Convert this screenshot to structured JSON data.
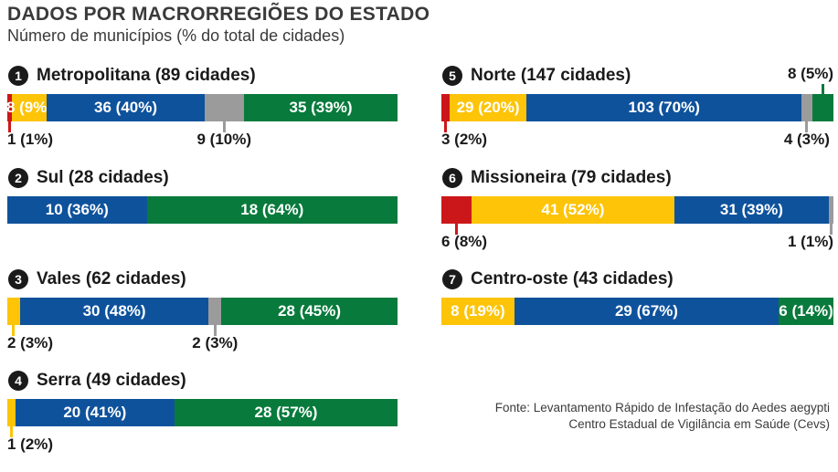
{
  "header": {
    "title": "DADOS POR MACRORREGIÕES DO ESTADO",
    "subtitle": "Número de municípios (% do total de cidades)"
  },
  "footer": {
    "source_line1": "Fonte: Levantamento Rápido de Infestação do Aedes aegypti",
    "source_line2": "Centro Estadual de Vigilância em Saúde (Cevs)"
  },
  "palette": {
    "red": "#cc171a",
    "yellow": "#fdc408",
    "blue": "#0e529c",
    "gray": "#9b9b9b",
    "green": "#087a3c",
    "badge_black": "#1a1a1a",
    "inside_label_text": "#ffffff",
    "callout_label_text": "#1a1a1a"
  },
  "chart_data": {
    "type": "bar",
    "orientation": "horizontal-stacked",
    "value_format": "count (percent of region total)",
    "title": "DADOS POR MACRORREGIÕES DO ESTADO",
    "subtitle": "Número de municípios (% do total de cidades)",
    "legend_position": "none",
    "charts": [
      {
        "number": "1",
        "region": "Metropolitana",
        "total_cities": 89,
        "title": "Metropolitana (89 cidades)",
        "segments": [
          {
            "color": "red",
            "value": 1,
            "pct": 1,
            "label": "1 (1%)",
            "label_position": "below"
          },
          {
            "color": "yellow",
            "value": 8,
            "pct": 9,
            "label": "8 (9%)",
            "label_position": "inside"
          },
          {
            "color": "blue",
            "value": 36,
            "pct": 40,
            "label": "36 (40%)",
            "label_position": "inside"
          },
          {
            "color": "gray",
            "value": 9,
            "pct": 10,
            "label": "9 (10%)",
            "label_position": "below"
          },
          {
            "color": "green",
            "value": 35,
            "pct": 39,
            "label": "35 (39%)",
            "label_position": "inside"
          }
        ]
      },
      {
        "number": "2",
        "region": "Sul",
        "total_cities": 28,
        "title": "Sul (28 cidades)",
        "segments": [
          {
            "color": "blue",
            "value": 10,
            "pct": 36,
            "label": "10 (36%)",
            "label_position": "inside"
          },
          {
            "color": "green",
            "value": 18,
            "pct": 64,
            "label": "18 (64%)",
            "label_position": "inside"
          }
        ]
      },
      {
        "number": "3",
        "region": "Vales",
        "total_cities": 62,
        "title": "Vales (62 cidades)",
        "segments": [
          {
            "color": "yellow",
            "value": 2,
            "pct": 3,
            "label": "2 (3%)",
            "label_position": "below"
          },
          {
            "color": "blue",
            "value": 30,
            "pct": 48,
            "label": "30 (48%)",
            "label_position": "inside"
          },
          {
            "color": "gray",
            "value": 2,
            "pct": 3,
            "label": "2 (3%)",
            "label_position": "below"
          },
          {
            "color": "green",
            "value": 28,
            "pct": 45,
            "label": "28 (45%)",
            "label_position": "inside"
          }
        ]
      },
      {
        "number": "4",
        "region": "Serra",
        "total_cities": 49,
        "title": "Serra (49 cidades)",
        "segments": [
          {
            "color": "yellow",
            "value": 1,
            "pct": 2,
            "label": "1 (2%)",
            "label_position": "below"
          },
          {
            "color": "blue",
            "value": 20,
            "pct": 41,
            "label": "20 (41%)",
            "label_position": "inside"
          },
          {
            "color": "green",
            "value": 28,
            "pct": 57,
            "label": "28 (57%)",
            "label_position": "inside"
          }
        ]
      },
      {
        "number": "5",
        "region": "Norte",
        "total_cities": 147,
        "title": "Norte (147 cidades)",
        "segments": [
          {
            "color": "red",
            "value": 3,
            "pct": 2,
            "label": "3 (2%)",
            "label_position": "below"
          },
          {
            "color": "yellow",
            "value": 29,
            "pct": 20,
            "label": "29 (20%)",
            "label_position": "inside"
          },
          {
            "color": "blue",
            "value": 103,
            "pct": 70,
            "label": "103 (70%)",
            "label_position": "inside"
          },
          {
            "color": "gray",
            "value": 4,
            "pct": 3,
            "label": "4 (3%)",
            "label_position": "below"
          },
          {
            "color": "green",
            "value": 8,
            "pct": 5,
            "label": "8 (5%)",
            "label_position": "above"
          }
        ]
      },
      {
        "number": "6",
        "region": "Missioneira",
        "total_cities": 79,
        "title": "Missioneira (79 cidades)",
        "segments": [
          {
            "color": "red",
            "value": 6,
            "pct": 8,
            "label": "6 (8%)",
            "label_position": "below"
          },
          {
            "color": "yellow",
            "value": 41,
            "pct": 52,
            "label": "41 (52%)",
            "label_position": "inside"
          },
          {
            "color": "blue",
            "value": 31,
            "pct": 39,
            "label": "31 (39%)",
            "label_position": "inside"
          },
          {
            "color": "gray",
            "value": 1,
            "pct": 1,
            "label": "1 (1%)",
            "label_position": "below"
          }
        ]
      },
      {
        "number": "7",
        "region": "Centro-oste",
        "total_cities": 43,
        "title": "Centro-oste (43 cidades)",
        "segments": [
          {
            "color": "yellow",
            "value": 8,
            "pct": 19,
            "label": "8 (19%)",
            "label_position": "inside"
          },
          {
            "color": "blue",
            "value": 29,
            "pct": 67,
            "label": "29 (67%)",
            "label_position": "inside"
          },
          {
            "color": "green",
            "value": 6,
            "pct": 14,
            "label": "6 (14%)",
            "label_position": "inside"
          }
        ]
      }
    ]
  }
}
